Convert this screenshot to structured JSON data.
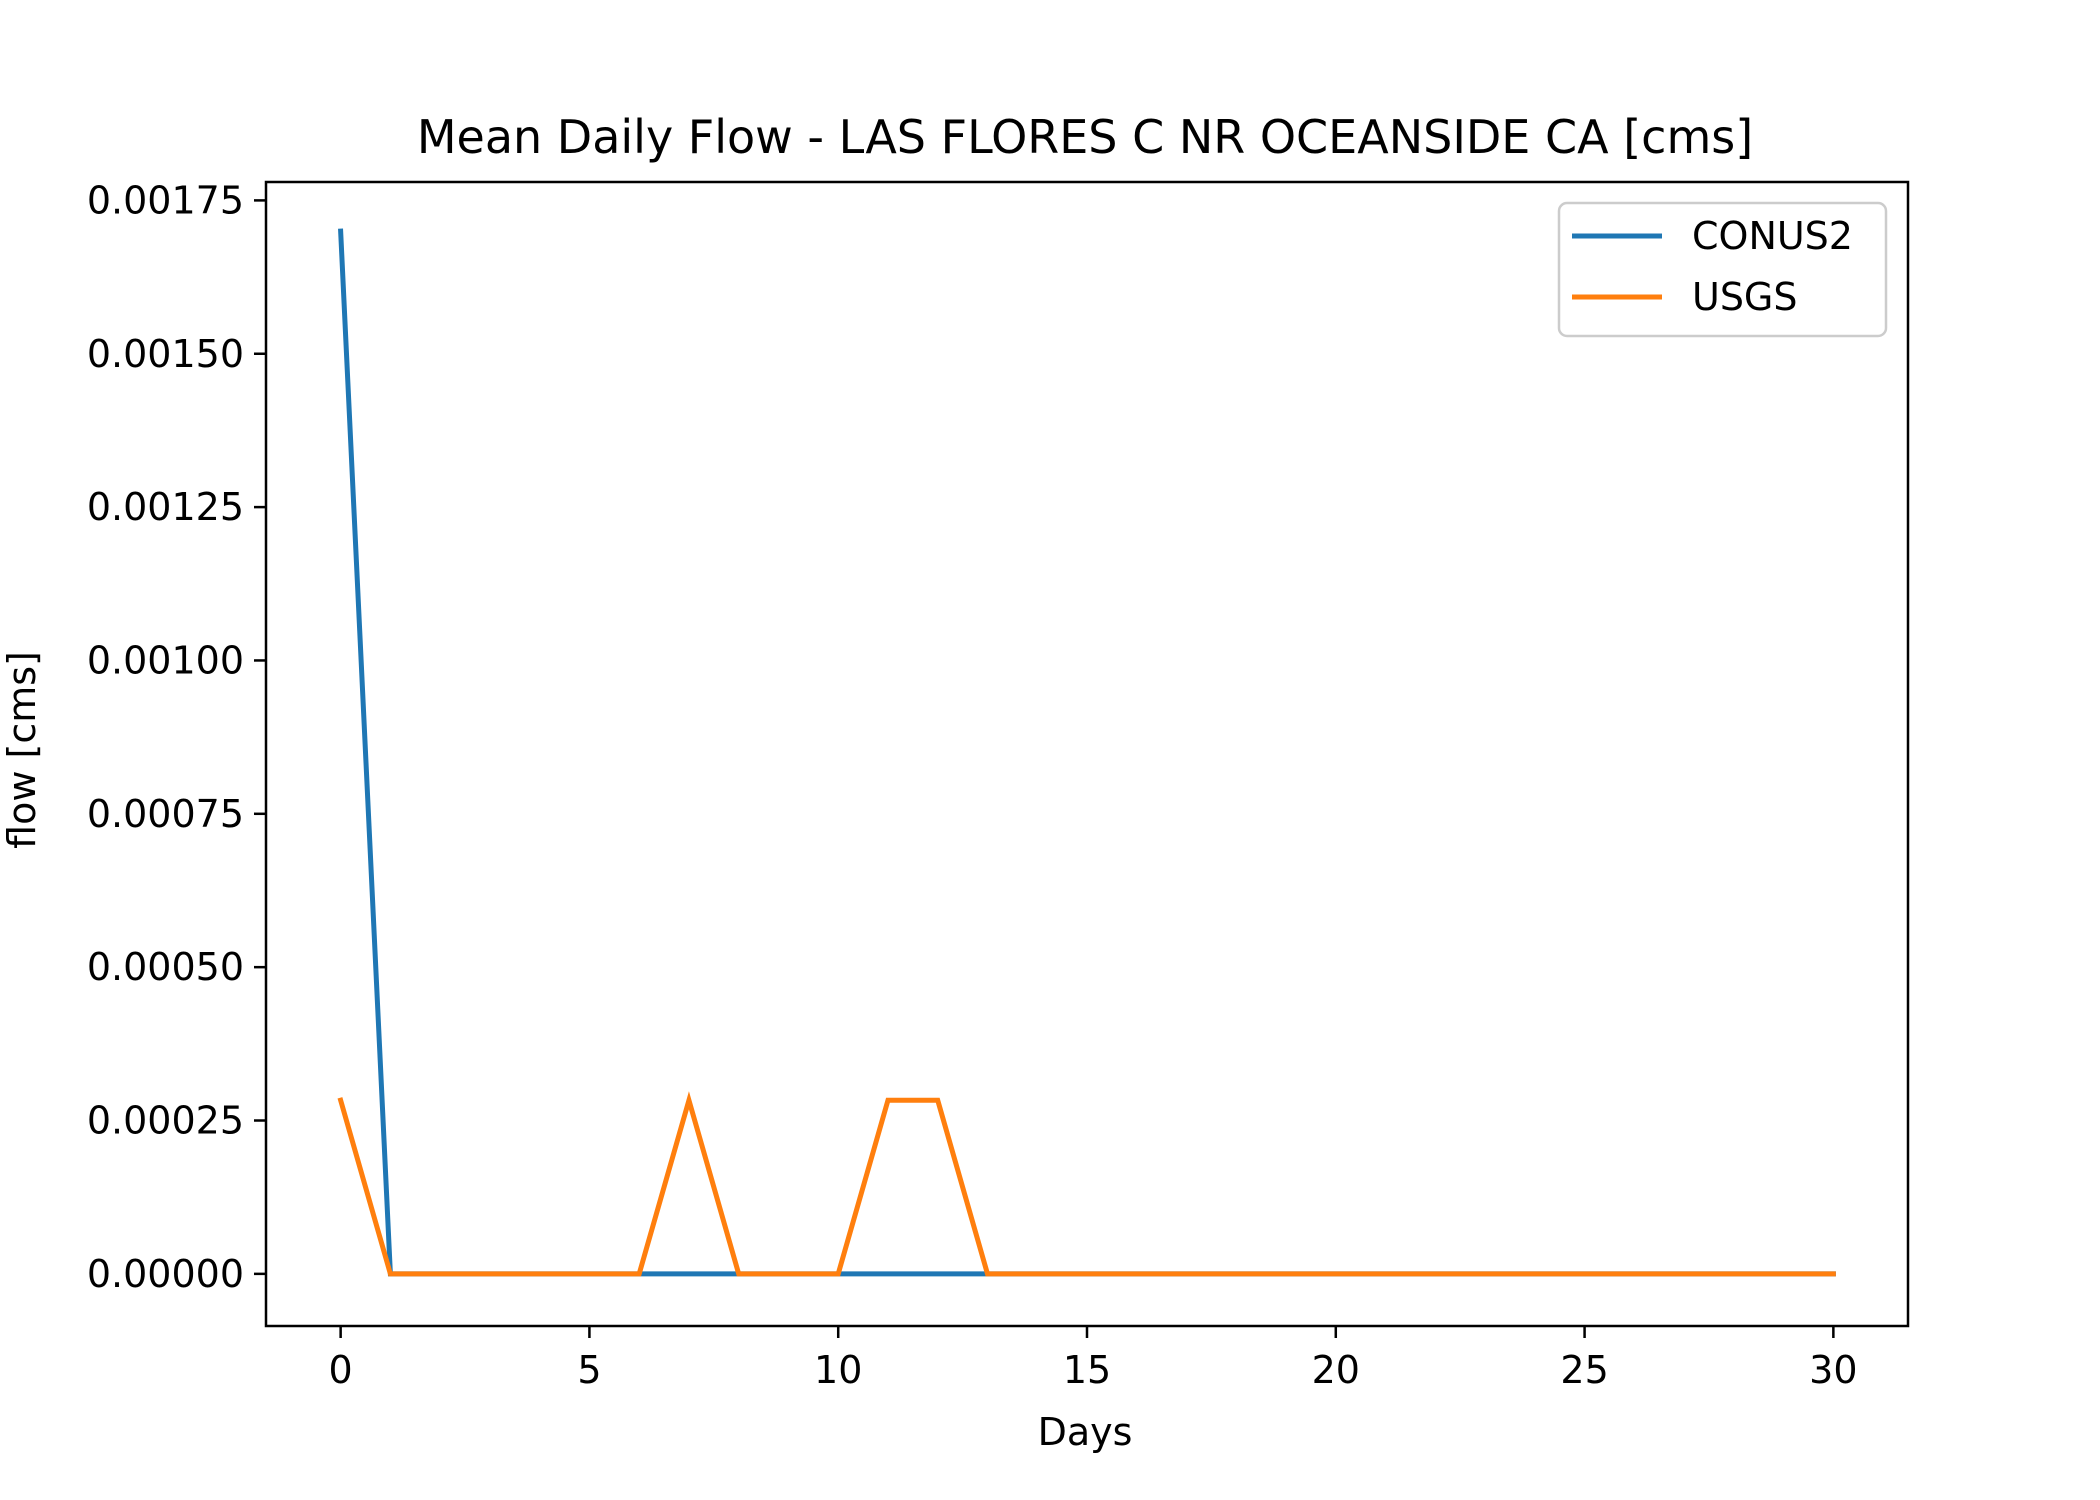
{
  "chart_data": {
    "type": "line",
    "title": "Mean Daily Flow - LAS FLORES C NR OCEANSIDE CA [cms]",
    "xlabel": "Days",
    "ylabel": "flow [cms]",
    "xlim": [
      -1.5,
      31.5
    ],
    "ylim": [
      -8.5e-05,
      0.00178
    ],
    "x_ticks": [
      0,
      5,
      10,
      15,
      20,
      25,
      30
    ],
    "x_tick_labels": [
      "0",
      "5",
      "10",
      "15",
      "20",
      "25",
      "30"
    ],
    "y_ticks": [
      0,
      0.00025,
      0.0005,
      0.00075,
      0.001,
      0.00125,
      0.0015,
      0.00175
    ],
    "y_tick_labels": [
      "0.00000",
      "0.00025",
      "0.00050",
      "0.00075",
      "0.00100",
      "0.00125",
      "0.00150",
      "0.00175"
    ],
    "grid": false,
    "legend_position": "top-right",
    "x": [
      0,
      1,
      2,
      3,
      4,
      5,
      6,
      7,
      8,
      9,
      10,
      11,
      12,
      13,
      14,
      15,
      16,
      17,
      18,
      19,
      20,
      21,
      22,
      23,
      24,
      25,
      26,
      27,
      28,
      29,
      30
    ],
    "series": [
      {
        "name": "CONUS2",
        "color": "#1f77b4",
        "values": [
          0.0017,
          0,
          0,
          0,
          0,
          0,
          0,
          0,
          0,
          0,
          0,
          0,
          0,
          0,
          0,
          0,
          0,
          0,
          0,
          0,
          0,
          0,
          0,
          0,
          0,
          0,
          0,
          0,
          0,
          0,
          0
        ]
      },
      {
        "name": "USGS",
        "color": "#ff7f0e",
        "values": [
          0.000283,
          0,
          0,
          0,
          0,
          0,
          0,
          0.000283,
          0,
          0,
          0,
          0.000283,
          0.000283,
          0,
          0,
          0,
          0,
          0,
          0,
          0,
          0,
          0,
          0,
          0,
          0,
          0,
          0,
          0,
          0,
          0,
          0
        ]
      }
    ]
  }
}
